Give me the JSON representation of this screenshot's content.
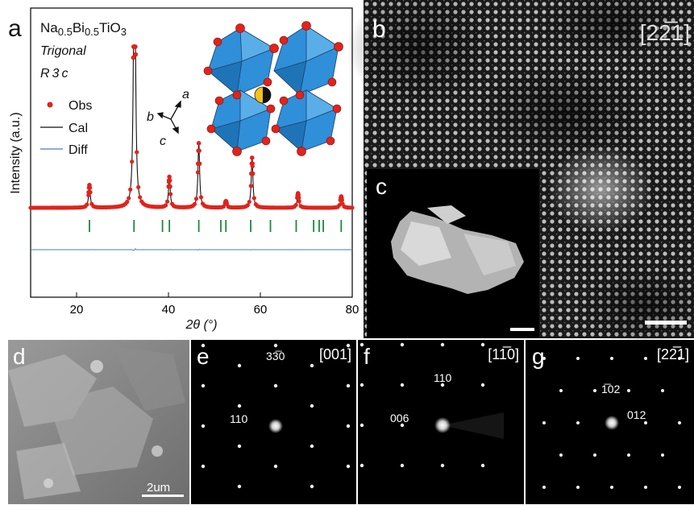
{
  "panel_labels": {
    "a": "a",
    "b": "b",
    "c": "c",
    "d": "d",
    "e": "e",
    "f": "f",
    "g": "g"
  },
  "panel_a": {
    "formula": {
      "na": "Na",
      "sub1": "0.5",
      "bi": "Bi",
      "sub2": "0.5",
      "rest": "TiO",
      "sub3": "3"
    },
    "system": "Trigonal",
    "space_group": "R3c",
    "legend": {
      "obs": "Obs",
      "cal": "Cal",
      "diff": "Diff"
    },
    "axes_labels": {
      "a": "a",
      "b": "b",
      "c": "c"
    }
  },
  "panel_b": {
    "zone_axis": "[22̅1]"
  },
  "panel_d": {
    "scale_bar": "2um"
  },
  "panel_e": {
    "zone_axis": "[001]",
    "spot1": "33̅0",
    "spot2": "110"
  },
  "panel_f": {
    "zone_axis": "[11̅0]",
    "spot1": "110",
    "spot2": "006"
  },
  "panel_g": {
    "zone_axis": "[22̅1]",
    "spot1": "1̅02",
    "spot2": "012"
  },
  "colors": {
    "obs": "#e2231a",
    "cal": "#111111",
    "diff": "#4a78c8",
    "ticks": "#1a8a3a",
    "octahedra": "#2f8fd8"
  },
  "chart_data": {
    "type": "line",
    "title": "",
    "xlabel": "2θ (°)",
    "ylabel": "Intensity (a.u.)",
    "xlim": [
      10,
      80
    ],
    "xticks": [
      20,
      40,
      60,
      80
    ],
    "series": [
      {
        "name": "Obs",
        "type": "scatter",
        "x": [
          22.8,
          32.5,
          32.7,
          40.2,
          46.6,
          52.5,
          58.2,
          68.2,
          77.6
        ],
        "y": [
          0.14,
          0.95,
          1.0,
          0.19,
          0.4,
          0.04,
          0.31,
          0.09,
          0.07
        ]
      },
      {
        "name": "Cal",
        "type": "line",
        "x": [
          22.8,
          32.5,
          32.7,
          40.2,
          46.6,
          52.5,
          58.2,
          68.2,
          77.6
        ],
        "y": [
          0.14,
          0.95,
          1.0,
          0.19,
          0.4,
          0.04,
          0.31,
          0.09,
          0.07
        ]
      },
      {
        "name": "Diff",
        "type": "line"
      }
    ],
    "reflection_positions": [
      22.8,
      32.5,
      38.7,
      40.2,
      46.6,
      51.4,
      52.5,
      57.9,
      62.2,
      67.8,
      71.6,
      72.8,
      73.7,
      77.6
    ]
  }
}
